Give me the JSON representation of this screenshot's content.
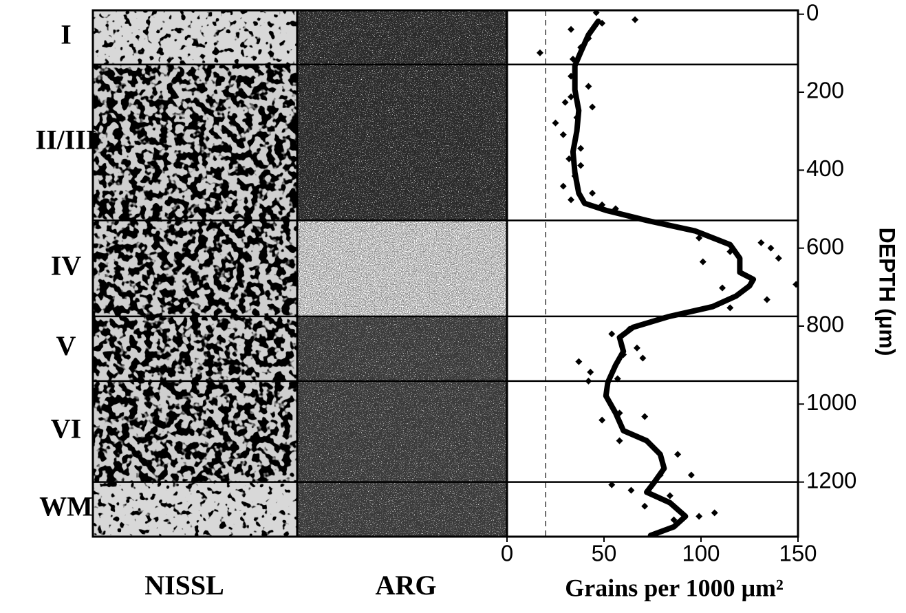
{
  "chart_data": {
    "type": "line",
    "x_label": "Grains per 1000 μm²",
    "y_label": "DEPTH (μm)",
    "panel_labels": [
      "NISSL",
      "ARG"
    ],
    "layer_labels": [
      "I",
      "II/III",
      "IV",
      "V",
      "VI",
      "WM"
    ],
    "layer_boundaries": [
      129,
      529,
      775,
      941,
      1200
    ],
    "xlim": [
      0,
      150
    ],
    "xticks": [
      0,
      50,
      100,
      150
    ],
    "ylim": [
      -10,
      1340
    ],
    "yticks": [
      0,
      200,
      400,
      600,
      800,
      1000,
      1200
    ],
    "y_inverted": true,
    "reference_x": 20,
    "color": "#000000",
    "line": {
      "grains": [
        47,
        42,
        38,
        35,
        35,
        37,
        36,
        34,
        35,
        37,
        40,
        51,
        72,
        97,
        115,
        120,
        120,
        127,
        125,
        118,
        106,
        83,
        65,
        58,
        60,
        56,
        52,
        51,
        56,
        60,
        72,
        79,
        81,
        76,
        72,
        84,
        92,
        86,
        74
      ],
      "depth": [
        18,
        53,
        97,
        132,
        194,
        247,
        300,
        353,
        406,
        459,
        485,
        503,
        529,
        556,
        591,
        626,
        662,
        680,
        697,
        723,
        750,
        776,
        803,
        829,
        865,
        900,
        944,
        979,
        1023,
        1068,
        1094,
        1129,
        1165,
        1200,
        1226,
        1253,
        1288,
        1315,
        1337
      ]
    },
    "points": {
      "grains": [
        46,
        66,
        49,
        33,
        42,
        38,
        17,
        34,
        33,
        42,
        33,
        30,
        44,
        36,
        25,
        29,
        38,
        32,
        38,
        35,
        29,
        44,
        33,
        49,
        56,
        99,
        131,
        136,
        115,
        101,
        140,
        149,
        111,
        134,
        115,
        54,
        63,
        67,
        37,
        60,
        70,
        43,
        42,
        57,
        49,
        58,
        71,
        58,
        88,
        79,
        95,
        54,
        64,
        71,
        84,
        99,
        107,
        86
      ],
      "depth": [
        -4,
        14,
        23,
        39,
        62,
        85,
        99,
        115,
        159,
        185,
        212,
        226,
        238,
        265,
        279,
        309,
        344,
        371,
        388,
        415,
        441,
        459,
        476,
        489,
        499,
        574,
        586,
        600,
        609,
        635,
        626,
        693,
        702,
        732,
        753,
        820,
        808,
        856,
        891,
        873,
        882,
        918,
        941,
        935,
        1041,
        1023,
        1032,
        1094,
        1129,
        1182,
        1182,
        1207,
        1221,
        1262,
        1235,
        1288,
        1279,
        1297
      ]
    }
  }
}
